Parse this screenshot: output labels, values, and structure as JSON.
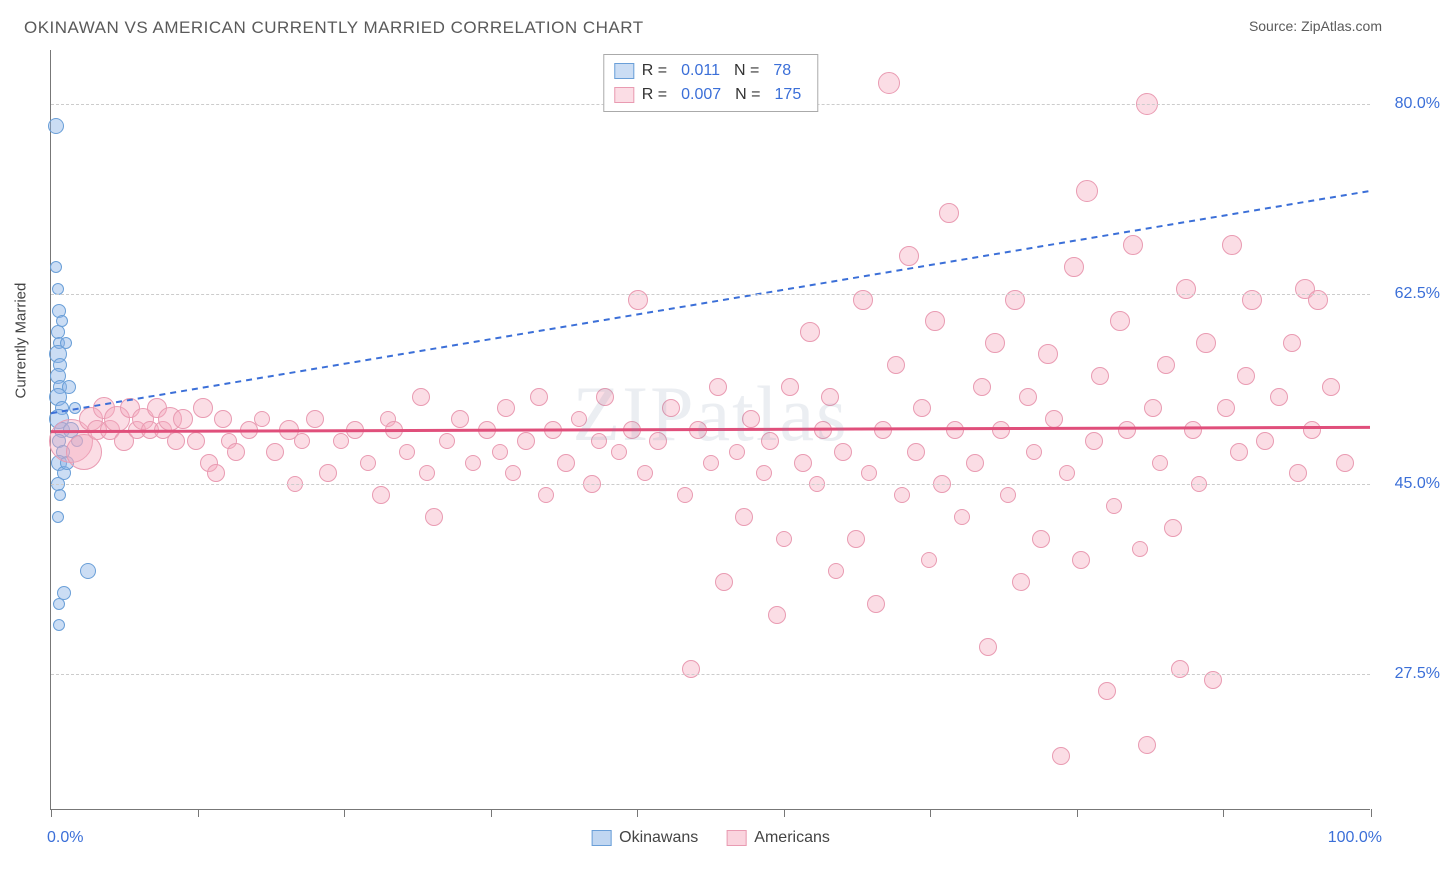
{
  "header": {
    "title": "OKINAWAN VS AMERICAN CURRENTLY MARRIED CORRELATION CHART",
    "source": "Source: ZipAtlas.com"
  },
  "watermark": "ZIPatlas",
  "chart": {
    "type": "scatter",
    "xlim": [
      0,
      100
    ],
    "ylim": [
      15,
      85
    ],
    "x_tick_positions": [
      0,
      11.1,
      22.2,
      33.3,
      44.4,
      55.5,
      66.6,
      77.7,
      88.8,
      100
    ],
    "x_axis_labels": [
      {
        "pos": 0,
        "text": "0.0%"
      },
      {
        "pos": 100,
        "text": "100.0%"
      }
    ],
    "y_gridlines": [
      27.5,
      45.0,
      62.5,
      80.0
    ],
    "y_tick_labels": [
      "27.5%",
      "45.0%",
      "62.5%",
      "80.0%"
    ],
    "y_axis_title": "Currently Married",
    "background_color": "#ffffff",
    "grid_color": "#cccccc",
    "axis_color": "#777777",
    "label_color": "#3b6fd8",
    "series": [
      {
        "name": "Okinawans",
        "fill": "rgba(140,180,230,0.45)",
        "stroke": "#6a9fd8",
        "trend_color": "#3b6fd8",
        "trend_dash": "6,5",
        "trend_width": 2,
        "trend_y1": 51.5,
        "trend_y2": 72.0,
        "R": "0.011",
        "N": "78",
        "points": [
          {
            "x": 0.4,
            "y": 78,
            "r": 8
          },
          {
            "x": 0.4,
            "y": 65,
            "r": 6
          },
          {
            "x": 0.5,
            "y": 63,
            "r": 6
          },
          {
            "x": 0.6,
            "y": 61,
            "r": 7
          },
          {
            "x": 0.5,
            "y": 59,
            "r": 7
          },
          {
            "x": 0.6,
            "y": 58,
            "r": 6
          },
          {
            "x": 0.5,
            "y": 57,
            "r": 9
          },
          {
            "x": 0.7,
            "y": 56,
            "r": 7
          },
          {
            "x": 0.5,
            "y": 55,
            "r": 8
          },
          {
            "x": 0.7,
            "y": 54,
            "r": 7
          },
          {
            "x": 0.5,
            "y": 53,
            "r": 9
          },
          {
            "x": 0.8,
            "y": 52,
            "r": 7
          },
          {
            "x": 0.6,
            "y": 51,
            "r": 10
          },
          {
            "x": 0.8,
            "y": 50,
            "r": 8
          },
          {
            "x": 0.6,
            "y": 49,
            "r": 7
          },
          {
            "x": 0.9,
            "y": 48,
            "r": 7
          },
          {
            "x": 0.6,
            "y": 47,
            "r": 8
          },
          {
            "x": 1.0,
            "y": 46,
            "r": 7
          },
          {
            "x": 0.5,
            "y": 45,
            "r": 7
          },
          {
            "x": 0.7,
            "y": 44,
            "r": 6
          },
          {
            "x": 0.5,
            "y": 42,
            "r": 6
          },
          {
            "x": 1.4,
            "y": 54,
            "r": 7
          },
          {
            "x": 1.5,
            "y": 50,
            "r": 8
          },
          {
            "x": 1.2,
            "y": 47,
            "r": 7
          },
          {
            "x": 1.8,
            "y": 52,
            "r": 6
          },
          {
            "x": 2.0,
            "y": 49,
            "r": 6
          },
          {
            "x": 1.0,
            "y": 35,
            "r": 7
          },
          {
            "x": 0.6,
            "y": 34,
            "r": 6
          },
          {
            "x": 0.6,
            "y": 32,
            "r": 6
          },
          {
            "x": 2.8,
            "y": 37,
            "r": 8
          },
          {
            "x": 0.8,
            "y": 60,
            "r": 6
          },
          {
            "x": 1.1,
            "y": 58,
            "r": 6
          }
        ]
      },
      {
        "name": "Americans",
        "fill": "rgba(245,170,190,0.40)",
        "stroke": "#e99bb2",
        "trend_color": "#e04f7b",
        "trend_dash": "",
        "trend_width": 3,
        "trend_y1": 49.8,
        "trend_y2": 50.2,
        "R": "0.007",
        "N": "175",
        "points": [
          {
            "x": 1.5,
            "y": 49,
            "r": 22
          },
          {
            "x": 2.5,
            "y": 48,
            "r": 18
          },
          {
            "x": 3,
            "y": 51,
            "r": 12
          },
          {
            "x": 3.5,
            "y": 50,
            "r": 10
          },
          {
            "x": 4,
            "y": 52,
            "r": 11
          },
          {
            "x": 4.5,
            "y": 50,
            "r": 10
          },
          {
            "x": 5,
            "y": 51,
            "r": 13
          },
          {
            "x": 5.5,
            "y": 49,
            "r": 10
          },
          {
            "x": 6,
            "y": 52,
            "r": 10
          },
          {
            "x": 6.5,
            "y": 50,
            "r": 9
          },
          {
            "x": 7,
            "y": 51,
            "r": 11
          },
          {
            "x": 7.5,
            "y": 50,
            "r": 9
          },
          {
            "x": 8,
            "y": 52,
            "r": 10
          },
          {
            "x": 8.5,
            "y": 50,
            "r": 9
          },
          {
            "x": 9,
            "y": 51,
            "r": 12
          },
          {
            "x": 9.5,
            "y": 49,
            "r": 9
          },
          {
            "x": 10,
            "y": 51,
            "r": 10
          },
          {
            "x": 11,
            "y": 49,
            "r": 9
          },
          {
            "x": 11.5,
            "y": 52,
            "r": 10
          },
          {
            "x": 12,
            "y": 47,
            "r": 9
          },
          {
            "x": 12.5,
            "y": 46,
            "r": 9
          },
          {
            "x": 13,
            "y": 51,
            "r": 9
          },
          {
            "x": 13.5,
            "y": 49,
            "r": 8
          },
          {
            "x": 14,
            "y": 48,
            "r": 9
          },
          {
            "x": 15,
            "y": 50,
            "r": 9
          },
          {
            "x": 16,
            "y": 51,
            "r": 8
          },
          {
            "x": 17,
            "y": 48,
            "r": 9
          },
          {
            "x": 18,
            "y": 50,
            "r": 10
          },
          {
            "x": 18.5,
            "y": 45,
            "r": 8
          },
          {
            "x": 19,
            "y": 49,
            "r": 8
          },
          {
            "x": 20,
            "y": 51,
            "r": 9
          },
          {
            "x": 21,
            "y": 46,
            "r": 9
          },
          {
            "x": 22,
            "y": 49,
            "r": 8
          },
          {
            "x": 23,
            "y": 50,
            "r": 9
          },
          {
            "x": 24,
            "y": 47,
            "r": 8
          },
          {
            "x": 25,
            "y": 44,
            "r": 9
          },
          {
            "x": 25.5,
            "y": 51,
            "r": 8
          },
          {
            "x": 26,
            "y": 50,
            "r": 9
          },
          {
            "x": 27,
            "y": 48,
            "r": 8
          },
          {
            "x": 28,
            "y": 53,
            "r": 9
          },
          {
            "x": 28.5,
            "y": 46,
            "r": 8
          },
          {
            "x": 29,
            "y": 42,
            "r": 9
          },
          {
            "x": 30,
            "y": 49,
            "r": 8
          },
          {
            "x": 31,
            "y": 51,
            "r": 9
          },
          {
            "x": 32,
            "y": 47,
            "r": 8
          },
          {
            "x": 33,
            "y": 50,
            "r": 9
          },
          {
            "x": 34,
            "y": 48,
            "r": 8
          },
          {
            "x": 34.5,
            "y": 52,
            "r": 9
          },
          {
            "x": 35,
            "y": 46,
            "r": 8
          },
          {
            "x": 36,
            "y": 49,
            "r": 9
          },
          {
            "x": 37,
            "y": 53,
            "r": 9
          },
          {
            "x": 37.5,
            "y": 44,
            "r": 8
          },
          {
            "x": 38,
            "y": 50,
            "r": 9
          },
          {
            "x": 39,
            "y": 47,
            "r": 9
          },
          {
            "x": 40,
            "y": 51,
            "r": 8
          },
          {
            "x": 41,
            "y": 45,
            "r": 9
          },
          {
            "x": 41.5,
            "y": 49,
            "r": 8
          },
          {
            "x": 42,
            "y": 53,
            "r": 9
          },
          {
            "x": 43,
            "y": 48,
            "r": 8
          },
          {
            "x": 44,
            "y": 50,
            "r": 9
          },
          {
            "x": 44.5,
            "y": 62,
            "r": 10
          },
          {
            "x": 45,
            "y": 46,
            "r": 8
          },
          {
            "x": 46,
            "y": 49,
            "r": 9
          },
          {
            "x": 47,
            "y": 52,
            "r": 9
          },
          {
            "x": 48,
            "y": 44,
            "r": 8
          },
          {
            "x": 48.5,
            "y": 28,
            "r": 9
          },
          {
            "x": 49,
            "y": 50,
            "r": 9
          },
          {
            "x": 50,
            "y": 47,
            "r": 8
          },
          {
            "x": 50.5,
            "y": 54,
            "r": 9
          },
          {
            "x": 51,
            "y": 36,
            "r": 9
          },
          {
            "x": 52,
            "y": 48,
            "r": 8
          },
          {
            "x": 52.5,
            "y": 42,
            "r": 9
          },
          {
            "x": 53,
            "y": 51,
            "r": 9
          },
          {
            "x": 54,
            "y": 46,
            "r": 8
          },
          {
            "x": 54.5,
            "y": 49,
            "r": 9
          },
          {
            "x": 55,
            "y": 33,
            "r": 9
          },
          {
            "x": 55.5,
            "y": 40,
            "r": 8
          },
          {
            "x": 56,
            "y": 54,
            "r": 9
          },
          {
            "x": 57,
            "y": 47,
            "r": 9
          },
          {
            "x": 57.5,
            "y": 59,
            "r": 10
          },
          {
            "x": 58,
            "y": 45,
            "r": 8
          },
          {
            "x": 58.5,
            "y": 50,
            "r": 9
          },
          {
            "x": 59,
            "y": 53,
            "r": 9
          },
          {
            "x": 59.5,
            "y": 37,
            "r": 8
          },
          {
            "x": 60,
            "y": 48,
            "r": 9
          },
          {
            "x": 61,
            "y": 40,
            "r": 9
          },
          {
            "x": 61.5,
            "y": 62,
            "r": 10
          },
          {
            "x": 62,
            "y": 46,
            "r": 8
          },
          {
            "x": 62.5,
            "y": 34,
            "r": 9
          },
          {
            "x": 63,
            "y": 50,
            "r": 9
          },
          {
            "x": 63.5,
            "y": 82,
            "r": 11
          },
          {
            "x": 64,
            "y": 56,
            "r": 9
          },
          {
            "x": 64.5,
            "y": 44,
            "r": 8
          },
          {
            "x": 65,
            "y": 66,
            "r": 10
          },
          {
            "x": 65.5,
            "y": 48,
            "r": 9
          },
          {
            "x": 66,
            "y": 52,
            "r": 9
          },
          {
            "x": 66.5,
            "y": 38,
            "r": 8
          },
          {
            "x": 67,
            "y": 60,
            "r": 10
          },
          {
            "x": 67.5,
            "y": 45,
            "r": 9
          },
          {
            "x": 68,
            "y": 70,
            "r": 10
          },
          {
            "x": 68.5,
            "y": 50,
            "r": 9
          },
          {
            "x": 69,
            "y": 42,
            "r": 8
          },
          {
            "x": 70,
            "y": 47,
            "r": 9
          },
          {
            "x": 70.5,
            "y": 54,
            "r": 9
          },
          {
            "x": 71,
            "y": 30,
            "r": 9
          },
          {
            "x": 71.5,
            "y": 58,
            "r": 10
          },
          {
            "x": 72,
            "y": 50,
            "r": 9
          },
          {
            "x": 72.5,
            "y": 44,
            "r": 8
          },
          {
            "x": 73,
            "y": 62,
            "r": 10
          },
          {
            "x": 73.5,
            "y": 36,
            "r": 9
          },
          {
            "x": 74,
            "y": 53,
            "r": 9
          },
          {
            "x": 74.5,
            "y": 48,
            "r": 8
          },
          {
            "x": 75,
            "y": 40,
            "r": 9
          },
          {
            "x": 75.5,
            "y": 57,
            "r": 10
          },
          {
            "x": 76,
            "y": 51,
            "r": 9
          },
          {
            "x": 76.5,
            "y": 20,
            "r": 9
          },
          {
            "x": 77,
            "y": 46,
            "r": 8
          },
          {
            "x": 77.5,
            "y": 65,
            "r": 10
          },
          {
            "x": 78,
            "y": 38,
            "r": 9
          },
          {
            "x": 78.5,
            "y": 72,
            "r": 11
          },
          {
            "x": 79,
            "y": 49,
            "r": 9
          },
          {
            "x": 79.5,
            "y": 55,
            "r": 9
          },
          {
            "x": 80,
            "y": 26,
            "r": 9
          },
          {
            "x": 80.5,
            "y": 43,
            "r": 8
          },
          {
            "x": 81,
            "y": 60,
            "r": 10
          },
          {
            "x": 81.5,
            "y": 50,
            "r": 9
          },
          {
            "x": 82,
            "y": 67,
            "r": 10
          },
          {
            "x": 82.5,
            "y": 39,
            "r": 8
          },
          {
            "x": 83,
            "y": 21,
            "r": 9
          },
          {
            "x": 83,
            "y": 80,
            "r": 11
          },
          {
            "x": 83.5,
            "y": 52,
            "r": 9
          },
          {
            "x": 84,
            "y": 47,
            "r": 8
          },
          {
            "x": 84.5,
            "y": 56,
            "r": 9
          },
          {
            "x": 85,
            "y": 41,
            "r": 9
          },
          {
            "x": 85.5,
            "y": 28,
            "r": 9
          },
          {
            "x": 86,
            "y": 63,
            "r": 10
          },
          {
            "x": 86.5,
            "y": 50,
            "r": 9
          },
          {
            "x": 87,
            "y": 45,
            "r": 8
          },
          {
            "x": 87.5,
            "y": 58,
            "r": 10
          },
          {
            "x": 88,
            "y": 27,
            "r": 9
          },
          {
            "x": 89,
            "y": 52,
            "r": 9
          },
          {
            "x": 89.5,
            "y": 67,
            "r": 10
          },
          {
            "x": 90,
            "y": 48,
            "r": 9
          },
          {
            "x": 90.5,
            "y": 55,
            "r": 9
          },
          {
            "x": 91,
            "y": 62,
            "r": 10
          },
          {
            "x": 92,
            "y": 49,
            "r": 9
          },
          {
            "x": 93,
            "y": 53,
            "r": 9
          },
          {
            "x": 94,
            "y": 58,
            "r": 9
          },
          {
            "x": 94.5,
            "y": 46,
            "r": 9
          },
          {
            "x": 95,
            "y": 63,
            "r": 10
          },
          {
            "x": 95.5,
            "y": 50,
            "r": 9
          },
          {
            "x": 96,
            "y": 62,
            "r": 10
          },
          {
            "x": 97,
            "y": 54,
            "r": 9
          },
          {
            "x": 98,
            "y": 47,
            "r": 9
          }
        ]
      }
    ],
    "legend_bottom": [
      {
        "label": "Okinawans",
        "fill": "rgba(140,180,230,0.55)",
        "stroke": "#6a9fd8"
      },
      {
        "label": "Americans",
        "fill": "rgba(245,170,190,0.5)",
        "stroke": "#e99bb2"
      }
    ]
  }
}
